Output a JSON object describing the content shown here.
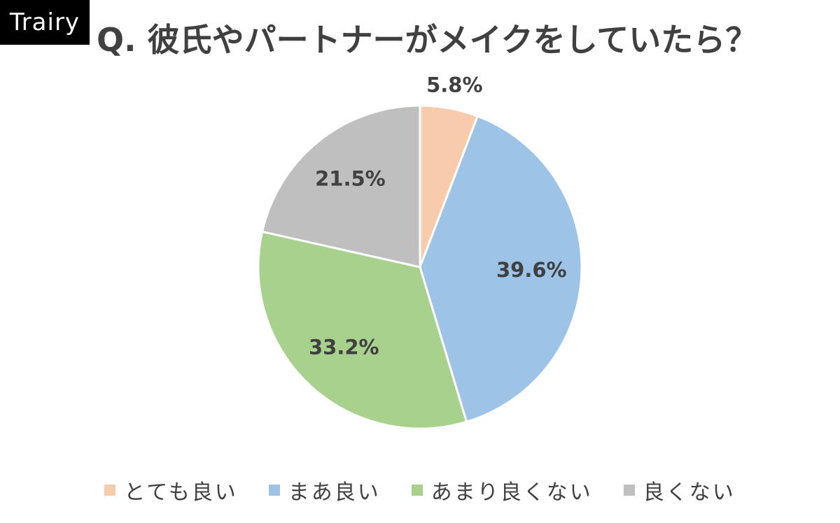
{
  "brand": {
    "logo_text": "Trairy"
  },
  "chart_data": {
    "type": "pie",
    "title": "Q. 彼氏やパートナーがメイクをしていたら？",
    "categories": [
      "とても良い",
      "まあ良い",
      "あまり良くない",
      "良くない"
    ],
    "values": [
      5.8,
      39.6,
      33.2,
      21.5
    ],
    "labels": [
      "5.8%",
      "39.6%",
      "33.2%",
      "21.5%"
    ],
    "colors": [
      "#F8CBAD",
      "#9DC3E6",
      "#A9D18E",
      "#BFBFBF"
    ],
    "start_angle": "12 o'clock",
    "direction": "clockwise",
    "legend_placement": "bottom"
  }
}
